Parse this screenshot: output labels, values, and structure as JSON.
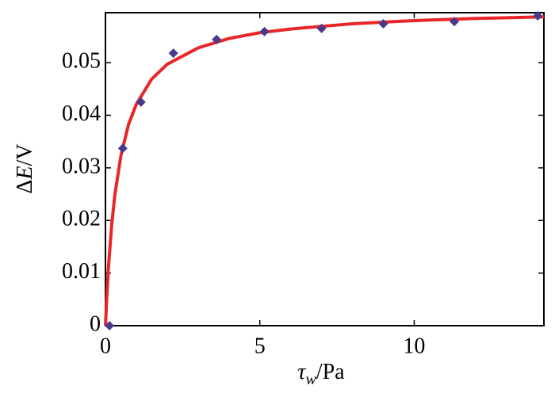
{
  "chart_data": {
    "type": "scatter",
    "x_label": [
      "τ",
      "w",
      "/Pa"
    ],
    "y_label": [
      "Δ",
      "E",
      "/V"
    ],
    "xlim": [
      0,
      14.2
    ],
    "xticks": [
      0,
      5,
      10
    ],
    "ylim": [
      0,
      0.0595
    ],
    "yticks": [
      0,
      0.01,
      0.02,
      0.03,
      0.04,
      0.05
    ],
    "series": [
      {
        "style": "markers",
        "color": "#4b3a8c",
        "x": [
          0.13,
          0.56,
          1.15,
          2.2,
          3.6,
          5.15,
          7.0,
          9.0,
          11.3,
          14.0
        ],
        "values": [
          0,
          0.0337,
          0.0425,
          0.0518,
          0.0544,
          0.0559,
          0.0565,
          0.0574,
          0.0578,
          0.0589
        ]
      },
      {
        "style": "line",
        "color": "#e8262a",
        "x": [
          0,
          0.05,
          0.1,
          0.2,
          0.3,
          0.5,
          0.75,
          1,
          1.5,
          2,
          3,
          4,
          5,
          6,
          8,
          10,
          12,
          14.2
        ],
        "values": [
          0,
          0.0062,
          0.0113,
          0.019,
          0.0247,
          0.0323,
          0.0383,
          0.0421,
          0.0469,
          0.0497,
          0.0528,
          0.0546,
          0.0557,
          0.0564,
          0.0574,
          0.058,
          0.0584,
          0.0587
        ]
      }
    ]
  }
}
